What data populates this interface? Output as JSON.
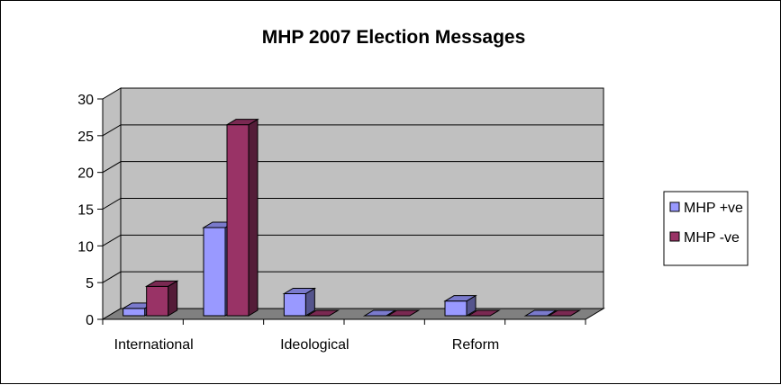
{
  "chart_data": {
    "type": "bar",
    "title": "MHP 2007 Election Messages",
    "xlabel": "",
    "ylabel": "",
    "categories": [
      "International",
      "",
      "Ideological",
      "",
      "Reform",
      ""
    ],
    "series": [
      {
        "name": "MHP +ve",
        "values": [
          1,
          12,
          3,
          0,
          2,
          0
        ]
      },
      {
        "name": "MHP -ve",
        "values": [
          4,
          26,
          0,
          0,
          0,
          0
        ]
      }
    ],
    "ylim": [
      0,
      30
    ],
    "yticks": [
      "0",
      "5",
      "10",
      "15",
      "20",
      "25",
      "30"
    ],
    "grid": true,
    "legend": "right",
    "style": "3d-clustered-column"
  },
  "colors": {
    "series_pos": "#9999ff",
    "series_neg": "#993366",
    "wall": "#c0c0c0",
    "floor": "#808080"
  }
}
